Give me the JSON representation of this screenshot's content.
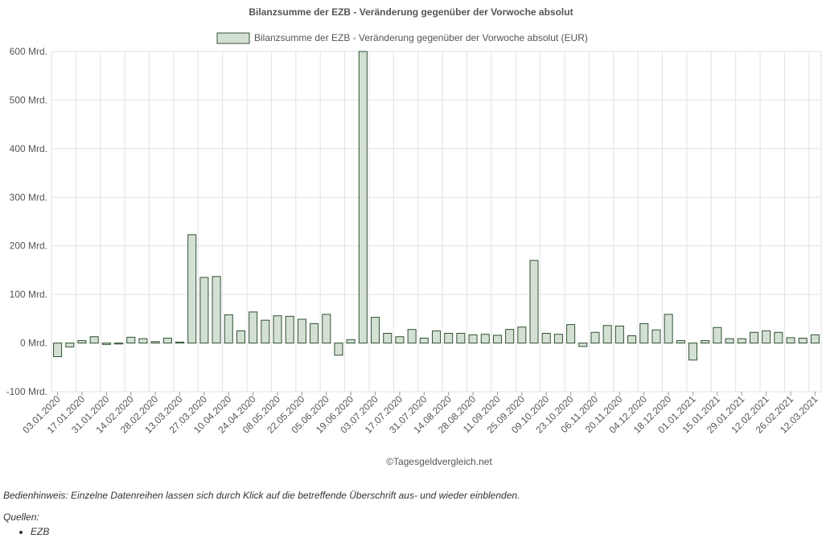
{
  "chart_data": {
    "type": "bar",
    "title": "Bilanzsumme der EZB - Veränderung gegenüber der Vorwoche absolut",
    "legend": {
      "position": "top-center",
      "entries": [
        "Bilanzsumme der EZB - Veränderung gegenüber der Vorwoche absolut (EUR)"
      ]
    },
    "ylim": [
      -100,
      600
    ],
    "yticks": [
      -100,
      0,
      100,
      200,
      300,
      400,
      500,
      600
    ],
    "ytick_labels": [
      "-100 Mrd.",
      "0 Mrd.",
      "100 Mrd.",
      "200 Mrd.",
      "300 Mrd.",
      "400 Mrd.",
      "500 Mrd.",
      "600 Mrd."
    ],
    "grid": true,
    "xtick_labels": [
      "03.01.2020",
      "17.01.2020",
      "31.01.2020",
      "14.02.2020",
      "28.02.2020",
      "13.03.2020",
      "27.03.2020",
      "10.04.2020",
      "24.04.2020",
      "08.05.2020",
      "22.05.2020",
      "05.06.2020",
      "19.06.2020",
      "03.07.2020",
      "17.07.2020",
      "31.07.2020",
      "14.08.2020",
      "28.08.2020",
      "11.09.2020",
      "25.09.2020",
      "09.10.2020",
      "23.10.2020",
      "06.11.2020",
      "20.11.2020",
      "04.12.2020",
      "18.12.2020",
      "01.01.2021",
      "15.01.2021",
      "29.01.2021",
      "12.02.2021",
      "26.02.2021",
      "12.03.2021"
    ],
    "series": [
      {
        "name": "Bilanzsumme der EZB - Veränderung gegenüber der Vorwoche absolut (EUR)",
        "color": "#d5e0d5",
        "stroke": "#2f5230",
        "values": [
          -28,
          -8,
          5,
          13,
          -3,
          -2,
          12,
          9,
          3,
          10,
          2,
          223,
          135,
          137,
          58,
          25,
          64,
          47,
          56,
          55,
          49,
          40,
          59,
          -25,
          7,
          600,
          53,
          20,
          13,
          28,
          10,
          25,
          20,
          20,
          17,
          18,
          16,
          28,
          33,
          170,
          20,
          18,
          38,
          -7,
          22,
          36,
          35,
          15,
          40,
          27,
          59,
          5,
          -35,
          5,
          32,
          9,
          9,
          22,
          25,
          22,
          11,
          10,
          17
        ]
      }
    ]
  },
  "credit": "©Tagesgeldvergleich.net",
  "footer": {
    "hint": "Bedienhinweis: Einzelne Datenreihen lassen sich durch Klick auf die betreffende Überschrift aus- und wieder einblenden.",
    "sources_label": "Quellen:",
    "sources": [
      "EZB"
    ]
  }
}
